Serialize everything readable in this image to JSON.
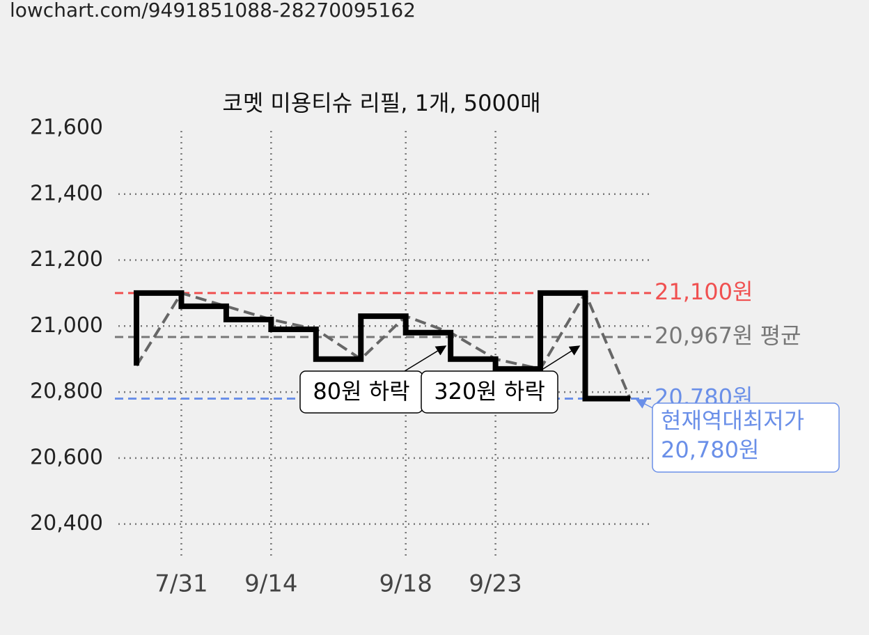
{
  "header": "lowchart.com/9491851088-28270095162",
  "chart_data": {
    "type": "line",
    "title": "코멧 미용티슈 리필, 1개, 5000매",
    "categories": [
      null,
      "7/31",
      null,
      "9/14",
      null,
      null,
      "9/18",
      null,
      "9/23",
      null,
      null,
      null
    ],
    "series": [
      {
        "color": "#000000",
        "connector_color": "#666666",
        "values": [
          20880,
          21100,
          21060,
          21020,
          20990,
          20900,
          21030,
          20980,
          20900,
          20870,
          21100,
          20780
        ]
      }
    ],
    "ylim": [
      20300,
      21600
    ],
    "yticks": [
      {
        "value": 20400,
        "label": "20,400"
      },
      {
        "value": 20600,
        "label": "20,600"
      },
      {
        "value": 20800,
        "label": "20,800"
      },
      {
        "value": 21000,
        "label": "21,000"
      },
      {
        "value": 21200,
        "label": "21,200"
      },
      {
        "value": 21400,
        "label": "21,400"
      },
      {
        "value": 21600,
        "label": "21,600"
      }
    ],
    "grid": true,
    "reference_lines": [
      {
        "value": 21100,
        "label": "21,100원",
        "color": "#f05050"
      },
      {
        "value": 20967,
        "label": "20,967원 평균",
        "color": "#777777"
      },
      {
        "value": 20780,
        "label": "20,780원",
        "color": "#6a8fe8"
      }
    ],
    "annotations": [
      {
        "text": "80원 하락"
      },
      {
        "text": "320원 하락"
      }
    ],
    "callout": {
      "lines": [
        "현재역대최저가",
        "20,780원"
      ],
      "color": "#6a8fe8"
    }
  }
}
